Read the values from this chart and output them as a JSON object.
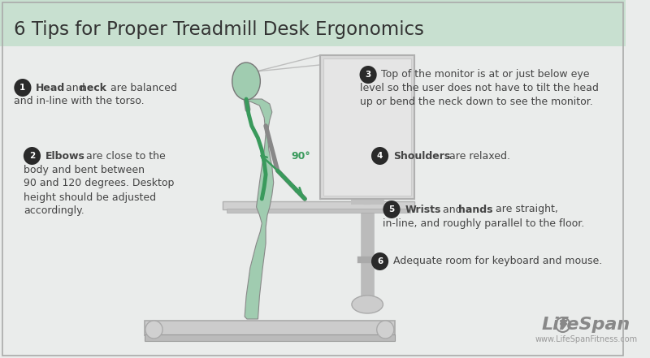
{
  "title": "6 Tips for Proper Treadmill Desk Ergonomics",
  "title_fontsize": 16,
  "bg_color": "#e8f0ec",
  "header_bg": "#c8e0d0",
  "body_bg": "#eaeceb",
  "circle_color": "#2a2a2a",
  "circle_text_color": "#ffffff",
  "green_spine": "#3a9a5c",
  "green_body": "#a0ccb0",
  "line_color": "#aaaaaa",
  "desk_color": "#c8c8c8",
  "text_color": "#444444",
  "brand_color": "#888888",
  "website": "www.LifeSpanFitness.com",
  "tip1_bold1": "Head",
  "tip1_mid": " and ",
  "tip1_bold2": "neck",
  "tip1_rest": " are balanced",
  "tip1_line2": "and in-line with the torso.",
  "tip2_bold": "Elbows",
  "tip2_rest": " are close to the",
  "tip2_line2": "body and bent between",
  "tip2_line3": "90 and 120 degrees. Desktop",
  "tip2_line4": "height should be adjusted",
  "tip2_line5": "accordingly.",
  "tip3_line1": "Top of the monitor is at or just below eye",
  "tip3_line2": "level so the user does not have to tilt the head",
  "tip3_line3": "up or bend the neck down to see the monitor.",
  "tip4_bold": "Shoulders",
  "tip4_rest": " are relaxed.",
  "tip5_bold1": "Wrists",
  "tip5_mid": " and ",
  "tip5_bold2": "hands",
  "tip5_rest": " are straight,",
  "tip5_line2": "in-line, and roughly parallel to the floor.",
  "tip6_text": "Adequate room for keyboard and mouse.",
  "angle_label": "90°"
}
